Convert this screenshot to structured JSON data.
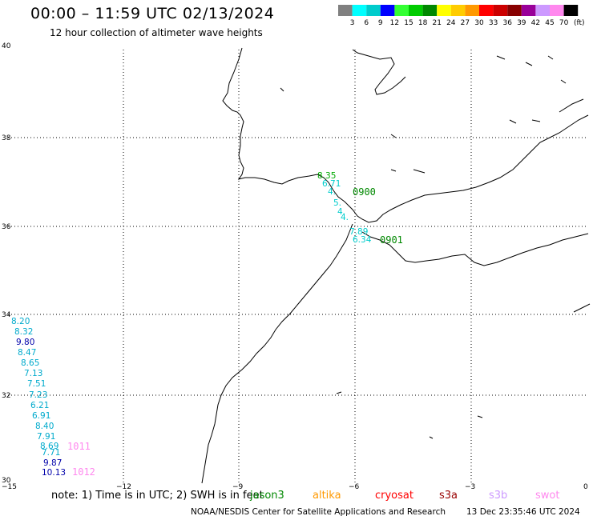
{
  "title": "00:00 – 11:59 UTC 02/13/2024",
  "subtitle": "12 hour collection of altimeter wave heights",
  "colorbar": {
    "unit": "(ft)",
    "ticks": [
      "3",
      "6",
      "9",
      "12",
      "15",
      "18",
      "21",
      "24",
      "27",
      "30",
      "33",
      "36",
      "39",
      "42",
      "45",
      "70"
    ],
    "colors": [
      "#808080",
      "#00ffff",
      "#00cccc",
      "#0000ff",
      "#33ff33",
      "#00cc00",
      "#008800",
      "#ffff00",
      "#ffcc00",
      "#ff9900",
      "#ff0000",
      "#cc0000",
      "#880000",
      "#990099",
      "#cc99ff",
      "#ff88ee",
      "#000000"
    ]
  },
  "axes": {
    "lon_labels": [
      "−15",
      "−12",
      "−9",
      "−6",
      "−3",
      "0"
    ],
    "lat_labels": [
      "40",
      "38",
      "36",
      "34",
      "32",
      "30"
    ]
  },
  "observations": [
    {
      "value": "8.35",
      "color": "#00aa00"
    },
    {
      "value": "6.71",
      "color": "#00cccc"
    },
    {
      "value": "4.",
      "color": "#00cccc"
    },
    {
      "value": "5.",
      "color": "#00cccc"
    },
    {
      "value": "4.",
      "color": "#00cccc"
    },
    {
      "value": "4.",
      "color": "#00cccc"
    },
    {
      "value": "7.89",
      "color": "#00cccc"
    },
    {
      "value": "6.34",
      "color": "#00cccc"
    },
    {
      "value": "8.20",
      "color": "#00aacc"
    },
    {
      "value": "8.32",
      "color": "#00aacc"
    },
    {
      "value": "9.80",
      "color": "#0000aa"
    },
    {
      "value": "8.47",
      "color": "#00aacc"
    },
    {
      "value": "8.65",
      "color": "#00aacc"
    },
    {
      "value": "7.13",
      "color": "#00aacc"
    },
    {
      "value": "7.51",
      "color": "#00aacc"
    },
    {
      "value": "7.23",
      "color": "#00aacc"
    },
    {
      "value": "6.21",
      "color": "#00aacc"
    },
    {
      "value": "6.91",
      "color": "#00aacc"
    },
    {
      "value": "8.40",
      "color": "#00aacc"
    },
    {
      "value": "7.91",
      "color": "#00aacc"
    },
    {
      "value": "8.69",
      "color": "#00aacc"
    },
    {
      "value": "7.71",
      "color": "#00aacc"
    },
    {
      "value": "9.87",
      "color": "#0000aa"
    },
    {
      "value": "10.13",
      "color": "#0000aa"
    }
  ],
  "time_labels": [
    {
      "text": "0900",
      "color": "#008800"
    },
    {
      "text": "0901",
      "color": "#008800"
    },
    {
      "text": "1011",
      "color": "#ff88ee"
    },
    {
      "text": "1012",
      "color": "#ff88ee"
    }
  ],
  "note": "note: 1) Time is in UTC; 2) SWH is in feet",
  "satellites": [
    {
      "name": "jason3",
      "color": "#008800"
    },
    {
      "name": "altika",
      "color": "#ff9900"
    },
    {
      "name": "cryosat",
      "color": "#ff0000"
    },
    {
      "name": "s3a",
      "color": "#990000"
    },
    {
      "name": "s3b",
      "color": "#cc99ff"
    },
    {
      "name": "swot",
      "color": "#ff88ee"
    }
  ],
  "credits": "NOAA/NESDIS Center for Satellite Applications and Research",
  "timestamp": "13 Dec 23:35:46 UTC 2024"
}
